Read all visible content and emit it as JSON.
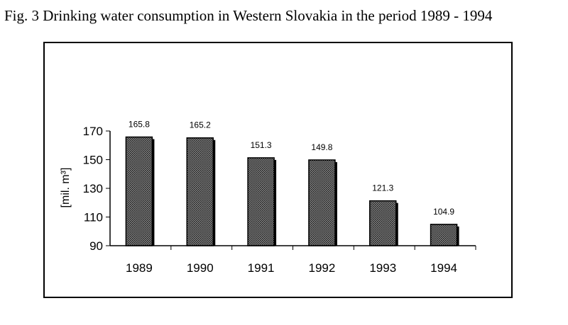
{
  "figure_title": "Fig. 3 Drinking water consumption in Western Slovakia in the period 1989 - 1994",
  "colors": {
    "bar_fill": "#5a5a5a",
    "bar_outline": "#000000",
    "axis": "#000000"
  },
  "chart_data": {
    "type": "bar",
    "title": "",
    "xlabel": "",
    "ylabel": "[mil. m³]",
    "categories": [
      "1989",
      "1990",
      "1991",
      "1992",
      "1993",
      "1994"
    ],
    "values": [
      165.8,
      165.2,
      151.3,
      149.8,
      121.3,
      104.9
    ],
    "data_labels": [
      "165.8",
      "165.2",
      "151.3",
      "149.8",
      "121.3",
      "104.9"
    ],
    "ylim": [
      90,
      170
    ],
    "yticks": [
      90,
      110,
      130,
      150,
      170
    ],
    "grid": false,
    "legend": "none"
  }
}
